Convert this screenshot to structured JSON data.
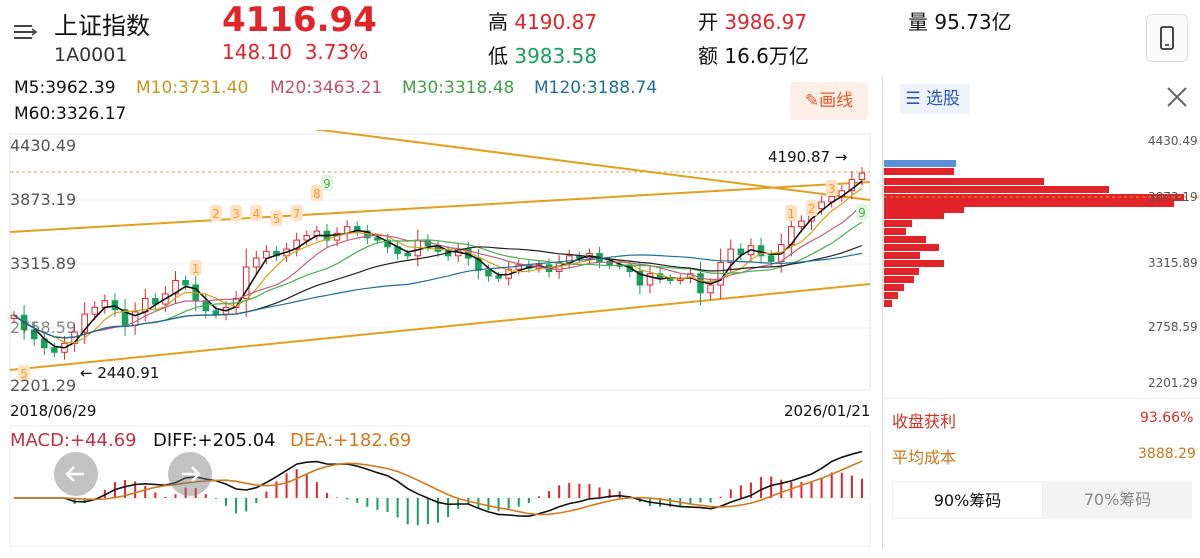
{
  "header": {
    "title": "上证指数",
    "code": "1A0001",
    "price": "4116.94",
    "change": "148.10",
    "change_pct": "3.73%",
    "high_label": "高",
    "high_value": "4190.87",
    "low_label": "低",
    "low_value": "3983.58",
    "open_label": "开",
    "open_value": "3986.97",
    "amount_label": "额",
    "amount_value": "16.6万亿",
    "volume_label": "量",
    "volume_value": "95.73亿"
  },
  "ma": {
    "m5": "M5:3962.39",
    "m10": "M10:3731.40",
    "m20": "M20:3463.21",
    "m30": "M30:3318.48",
    "m120": "M120:3188.74",
    "m60": "M60:3326.17"
  },
  "toolbar": {
    "draw_label": "画线"
  },
  "chart": {
    "y_ticks": [
      "4430.49",
      "3873.19",
      "3315.89",
      "2758.59",
      "2201.29"
    ],
    "high_annot": "4190.87",
    "low_annot": "2440.91",
    "start_date": "2018/06/29",
    "end_date": "2026/01/21"
  },
  "macd": {
    "macd": "MACD:+44.69",
    "diff": "DIFF:+205.04",
    "dea": "DEA:+182.69"
  },
  "panel": {
    "pick_label": "选股",
    "y_ticks": [
      "4430.49",
      "3873.19",
      "3315.89",
      "2758.59",
      "2201.29"
    ],
    "profit_label": "收盘获利",
    "profit_value": "93.66%",
    "cost_label": "平均成本",
    "cost_value": "3888.29",
    "tab_90": "90%筹码",
    "tab_70": "70%筹码"
  },
  "colors": {
    "up": "#e0242a",
    "down": "#16a05a",
    "m5": "#111111",
    "m10": "#d4a017",
    "m20": "#c06080",
    "m30": "#4caf50",
    "m120": "#1f6f9a",
    "m60": "#222222"
  },
  "chart_data": {
    "type": "candlestick",
    "title": "上证指数",
    "x_range": [
      "2018/06/29",
      "2026/01/21"
    ],
    "ylim": [
      2201.29,
      4430.49
    ],
    "y_ticks": [
      4430.49,
      3873.19,
      3315.89,
      2758.59,
      2201.29
    ],
    "annotations": [
      {
        "label": "4190.87",
        "type": "high"
      },
      {
        "label": "2440.91",
        "type": "low"
      }
    ],
    "close_series": [
      2850,
      2720,
      2640,
      2560,
      2520,
      2600,
      2700,
      2860,
      2920,
      2980,
      2900,
      2760,
      2880,
      3000,
      2950,
      3040,
      3160,
      3120,
      2980,
      2890,
      2860,
      2920,
      3000,
      3280,
      3360,
      3420,
      3380,
      3440,
      3520,
      3560,
      3600,
      3520,
      3580,
      3640,
      3600,
      3540,
      3520,
      3460,
      3400,
      3380,
      3520,
      3470,
      3420,
      3380,
      3440,
      3360,
      3250,
      3200,
      3180,
      3260,
      3300,
      3270,
      3300,
      3240,
      3320,
      3380,
      3360,
      3400,
      3330,
      3300,
      3290,
      3240,
      3120,
      3220,
      3180,
      3160,
      3180,
      3220,
      3050,
      3120,
      3320,
      3440,
      3390,
      3470,
      3380,
      3330,
      3480,
      3640,
      3690,
      3800,
      3860,
      3910,
      3960,
      4060,
      4116.94
    ],
    "ma_values": {
      "M5": 3962.39,
      "M10": 3731.4,
      "M20": 3463.21,
      "M30": 3318.48,
      "M60": 3326.17,
      "M120": 3188.74
    },
    "macd": {
      "MACD": 44.69,
      "DIFF": 205.04,
      "DEA": 182.69
    }
  }
}
